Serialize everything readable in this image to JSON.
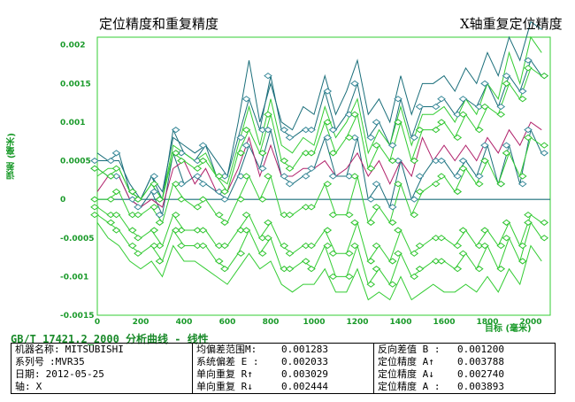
{
  "title_left": "定位精度和重复精度",
  "title_right": "X轴重复定位精度",
  "subtitle": "GB/T 17421.2_2000 分析曲线 - 线性",
  "info": {
    "col1": [
      {
        "key": "机器名称:",
        "value": "MITSUBISHI"
      },
      {
        "key": "系列号",
        "value": ":MVR35"
      },
      {
        "key": "日期:",
        "value": "2012-05-25"
      },
      {
        "key": "轴:",
        "value": "X"
      }
    ],
    "col2": [
      {
        "key": "均偏差范围M:",
        "value": "0.001283"
      },
      {
        "key": "系统偏差 E :",
        "value": "0.002033"
      },
      {
        "key": "单向重复 R↑",
        "value": "0.003029"
      },
      {
        "key": "单向重复 R↓",
        "value": "0.002444"
      }
    ],
    "col3": [
      {
        "key": "反向差值 B :",
        "value": "0.001200"
      },
      {
        "key": "定位精度 A↑",
        "value": "0.003788"
      },
      {
        "key": "定位精度 A↓",
        "value": "0.002740"
      },
      {
        "key": "定位精度 A :",
        "value": "0.003893"
      }
    ]
  },
  "colors": {
    "teal": "#1a6e7a",
    "green": "#33cc33",
    "magenta": "#b0206a",
    "diamond_teal": "#3a8a9a",
    "diamond_green": "#2ec42e",
    "axis_text": "#1a9a2a",
    "frame": "#33cc33"
  },
  "chart_data": {
    "type": "line",
    "ylabel": "误差 (毫米)",
    "xlabel": "目标 (毫米)",
    "xlim": [
      0,
      2000
    ],
    "ylim": [
      -0.0015,
      0.0021
    ],
    "x_ticks": [
      "0",
      "200",
      "400",
      "600",
      "800",
      "1000",
      "1200",
      "1400",
      "1600",
      "1800",
      "2000"
    ],
    "y_ticks": [
      "0.002",
      "0.0015",
      "0.001",
      "0.0005",
      "0",
      "-0.0005",
      "-0.001",
      "-0.0015"
    ],
    "x": [
      0,
      50,
      100,
      150,
      200,
      250,
      300,
      350,
      400,
      450,
      500,
      550,
      600,
      650,
      700,
      750,
      800,
      850,
      900,
      950,
      1000,
      1050,
      1100,
      1150,
      1200,
      1250,
      1300,
      1350,
      1400,
      1450,
      1500,
      1550,
      1600,
      1650,
      1700,
      1750,
      1800,
      1850,
      1900,
      1950,
      2000,
      2050
    ],
    "series": [
      {
        "role": "teal-upper",
        "values": [
          0.0005,
          0.0005,
          0.0006,
          0.0001,
          0.0,
          0.0003,
          0.0,
          0.0009,
          0.0006,
          0.0005,
          0.0007,
          0.0003,
          0.0003,
          0.0008,
          0.0013,
          0.0009,
          0.0016,
          0.0009,
          0.0008,
          0.0009,
          0.0009,
          0.0014,
          0.0009,
          0.0011,
          0.0015,
          0.0008,
          0.001,
          0.0007,
          0.0013,
          0.0008,
          0.0012,
          0.0012,
          0.0013,
          0.0011,
          0.0013,
          0.0012,
          0.0015,
          0.0012,
          0.0016,
          0.0014,
          0.0018,
          0.0016
        ]
      },
      {
        "role": "teal-upper2",
        "values": [
          0.0006,
          0.0005,
          0.0005,
          0.0002,
          0.0,
          0.0003,
          0.0001,
          0.0008,
          0.0007,
          0.0006,
          0.0007,
          0.0005,
          0.0003,
          0.001,
          0.0018,
          0.001,
          0.0015,
          0.001,
          0.0009,
          0.0012,
          0.0011,
          0.0016,
          0.0011,
          0.0014,
          0.0018,
          0.0011,
          0.0013,
          0.001,
          0.0016,
          0.0011,
          0.0015,
          0.0015,
          0.0016,
          0.0014,
          0.0017,
          0.0015,
          0.0019,
          0.0016,
          0.0021,
          0.0018,
          0.0023,
          0.0022
        ]
      },
      {
        "role": "teal-lower",
        "values": [
          0.0004,
          0.0003,
          0.0003,
          0.0,
          -0.0001,
          0.0001,
          -0.0002,
          0.0006,
          0.0002,
          0.0003,
          0.0002,
          0.0001,
          0.0,
          0.0003,
          0.0007,
          0.0004,
          0.0009,
          0.0003,
          0.0002,
          0.0003,
          0.0004,
          0.0008,
          0.0003,
          0.0003,
          0.0008,
          0.0,
          0.0002,
          -0.0001,
          0.0005,
          0.0,
          0.0003,
          0.0005,
          0.0005,
          0.0003,
          0.0005,
          0.0003,
          0.0007,
          0.0002,
          0.0007,
          0.0002,
          0.0009,
          0.0006
        ]
      },
      {
        "role": "magenta-mean",
        "values": [
          0.0001,
          0.0003,
          0.0003,
          0.0,
          -0.0001,
          0.0,
          -0.0001,
          0.0004,
          0.0005,
          0.0002,
          0.0004,
          0.0001,
          0.0001,
          0.0004,
          0.0008,
          0.0003,
          0.0007,
          0.0003,
          0.0003,
          0.0004,
          0.0004,
          0.0005,
          0.0003,
          0.0004,
          0.0006,
          0.0003,
          0.0005,
          0.0002,
          0.0005,
          0.0003,
          0.0008,
          0.0005,
          0.0007,
          0.0005,
          0.0007,
          0.0005,
          0.0008,
          0.0006,
          0.0009,
          0.0007,
          0.001,
          0.0009
        ]
      },
      {
        "role": "green-mid",
        "values": [
          0.0004,
          0.0003,
          0.0004,
          0.0001,
          0.0,
          0.0002,
          0.0,
          0.0006,
          0.0005,
          0.0004,
          0.0005,
          0.0003,
          0.0001,
          0.0006,
          0.0009,
          0.0006,
          0.0011,
          0.0005,
          0.0004,
          0.0006,
          0.0006,
          0.001,
          0.0006,
          0.0008,
          0.0011,
          0.0004,
          0.0007,
          0.0005,
          0.001,
          0.0005,
          0.0009,
          0.0009,
          0.001,
          0.0008,
          0.0011,
          0.0009,
          0.0012,
          0.0011,
          0.0015,
          0.0013,
          0.0017,
          0.0016
        ]
      },
      {
        "role": "green-upper-outer",
        "values": [
          0.0003,
          0.0004,
          0.0004,
          0.0001,
          0.0,
          0.0002,
          0.0,
          0.0007,
          0.0006,
          0.0005,
          0.0006,
          0.0003,
          0.0002,
          0.0007,
          0.0012,
          0.0007,
          0.0013,
          0.0007,
          0.0006,
          0.0008,
          0.0007,
          0.0012,
          0.0008,
          0.001,
          0.0013,
          0.0006,
          0.0009,
          0.0007,
          0.0012,
          0.0007,
          0.0011,
          0.0011,
          0.0012,
          0.001,
          0.0013,
          0.0011,
          0.0015,
          0.0013,
          0.0019,
          0.0015,
          0.0021,
          0.0019
        ]
      },
      {
        "role": "green-lower1",
        "values": [
          0.0,
          0.0,
          0.0001,
          -0.0002,
          -0.0002,
          -0.0001,
          -0.0003,
          0.0002,
          0.0,
          -0.0001,
          0.0,
          -0.0002,
          -0.0003,
          0.0,
          0.0003,
          0.0,
          0.0003,
          -0.0002,
          -0.0002,
          -0.0001,
          -0.0001,
          0.0002,
          -0.0002,
          -0.0002,
          0.0003,
          -0.0003,
          -0.0001,
          -0.0003,
          0.0002,
          -0.0002,
          0.0001,
          0.0002,
          0.0003,
          0.0001,
          0.0004,
          0.0002,
          0.0005,
          0.0002,
          0.0006,
          0.0003,
          0.0008,
          0.0007
        ]
      },
      {
        "role": "green-lower2",
        "values": [
          -0.0001,
          -0.0002,
          -0.0002,
          -0.0004,
          -0.0005,
          -0.0004,
          -0.0006,
          -0.0002,
          -0.0004,
          -0.0004,
          -0.0004,
          -0.0006,
          -0.0006,
          -0.0004,
          -0.0002,
          -0.0005,
          -0.0003,
          -0.0006,
          -0.0007,
          -0.0006,
          -0.0006,
          -0.0004,
          -0.0007,
          -0.0007,
          -0.0003,
          -0.0008,
          -0.0006,
          -0.0008,
          -0.0004,
          -0.0007,
          -0.0006,
          -0.0005,
          -0.0005,
          -0.0006,
          -0.0004,
          -0.0006,
          -0.0004,
          -0.0006,
          -0.0003,
          -0.0006,
          -0.0002,
          -0.0003
        ]
      },
      {
        "role": "green-lower3",
        "values": [
          -0.0003,
          -0.0005,
          -0.0006,
          -0.0008,
          -0.0009,
          -0.0008,
          -0.001,
          -0.0006,
          -0.0008,
          -0.0008,
          -0.0009,
          -0.001,
          -0.0011,
          -0.0009,
          -0.0007,
          -0.0009,
          -0.0008,
          -0.0011,
          -0.0012,
          -0.0011,
          -0.0011,
          -0.0009,
          -0.0012,
          -0.0012,
          -0.0009,
          -0.0013,
          -0.0012,
          -0.0013,
          -0.001,
          -0.0013,
          -0.0012,
          -0.0011,
          -0.0012,
          -0.0012,
          -0.0011,
          -0.0012,
          -0.001,
          -0.0012,
          -0.0009,
          -0.0011,
          -0.0006,
          -0.0008
        ]
      },
      {
        "role": "green-lower4",
        "values": [
          -0.0002,
          -0.0003,
          -0.0004,
          -0.0006,
          -0.0007,
          -0.0006,
          -0.0008,
          -0.0004,
          -0.0006,
          -0.0006,
          -0.0006,
          -0.0008,
          -0.0009,
          -0.0007,
          -0.0004,
          -0.0007,
          -0.0005,
          -0.0009,
          -0.0009,
          -0.0008,
          -0.0009,
          -0.0006,
          -0.001,
          -0.001,
          -0.0006,
          -0.0011,
          -0.0009,
          -0.0011,
          -0.0007,
          -0.001,
          -0.0009,
          -0.0008,
          -0.0008,
          -0.0009,
          -0.0007,
          -0.0009,
          -0.0006,
          -0.0009,
          -0.0005,
          -0.0008,
          -0.0003,
          -0.0005
        ]
      }
    ]
  }
}
